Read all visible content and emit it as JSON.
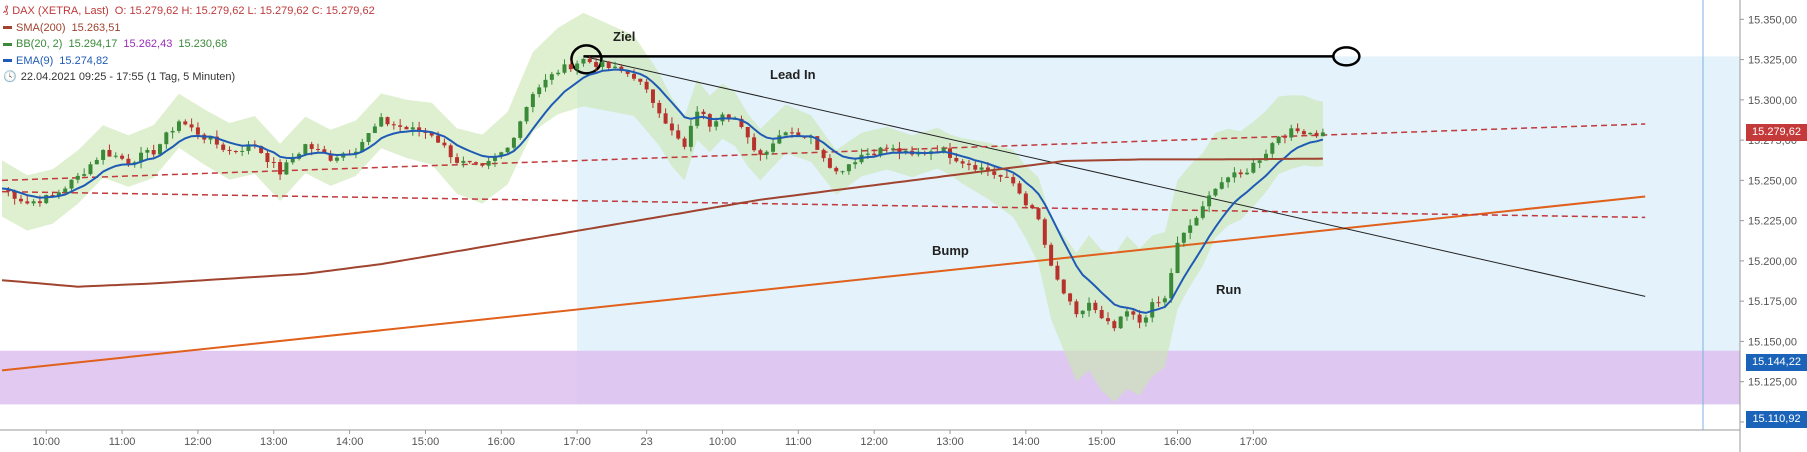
{
  "legend": {
    "instrument": "DAX (XETRA, Last)",
    "ohlc": "O: 15.279,62  H: 15.279,62  L: 15.279,62  C: 15.279,62",
    "sma_label": "SMA(200)",
    "sma_value": "15.263,51",
    "bb_label": "BB(20, 2)",
    "bb_upper": "15.294,17",
    "bb_mid": "15.262,43",
    "bb_lower": "15.230,68",
    "ema_label": "EMA(9)",
    "ema_value": "15.274,82",
    "range": "22.04.2021 09:25 - 17:55  (1 Tag, 5 Minuten)"
  },
  "annotations": {
    "ziel": "Ziel",
    "lead_in": "Lead In",
    "bump": "Bump",
    "run": "Run"
  },
  "price_labels": {
    "last": "15.279,62",
    "zone_top": "15.144,22",
    "zone_bottom": "15.110,92"
  },
  "colors": {
    "bull": "#3a8a3a",
    "bear": "#b8322d",
    "ema": "#1f5bb5",
    "sma": "#a0432f",
    "bb_fill": "#c9e6b0",
    "support": "#e0601c",
    "dashed": "#c0393b",
    "pattern_zone": "#e3f2fb",
    "purple_zone": "#ddbfee",
    "last_label": "#c43a3a",
    "zone_label": "#1a63b8"
  },
  "chart_data": {
    "type": "candlestick",
    "title": "DAX (XETRA, Last)",
    "y_ticks": [
      "15.100,00",
      "15.125,00",
      "15.150,00",
      "15.175,00",
      "15.200,00",
      "15.225,00",
      "15.250,00",
      "15.275,00",
      "15.300,00",
      "15.325,00",
      "15.350,00"
    ],
    "y_tick_values": [
      15100,
      15125,
      15150,
      15175,
      15200,
      15225,
      15250,
      15275,
      15300,
      15325,
      15350
    ],
    "ylim": [
      15095,
      15362
    ],
    "x_ticks": [
      "10:00",
      "11:00",
      "12:00",
      "13:00",
      "14:00",
      "15:00",
      "16:00",
      "17:00",
      "23",
      "10:00",
      "11:00",
      "12:00",
      "13:00",
      "14:00",
      "15:00",
      "16:00",
      "17:00"
    ],
    "x_tick_index": [
      7,
      19,
      31,
      43,
      55,
      67,
      79,
      91,
      102,
      114,
      126,
      138,
      150,
      162,
      174,
      186,
      198
    ],
    "n_bars": 210,
    "pattern_zone_from_index": 91,
    "close_keypoints": [
      [
        0,
        15245
      ],
      [
        4,
        15236
      ],
      [
        8,
        15240
      ],
      [
        12,
        15252
      ],
      [
        16,
        15268
      ],
      [
        20,
        15262
      ],
      [
        24,
        15268
      ],
      [
        28,
        15287
      ],
      [
        32,
        15277
      ],
      [
        36,
        15268
      ],
      [
        40,
        15272
      ],
      [
        44,
        15255
      ],
      [
        48,
        15272
      ],
      [
        52,
        15264
      ],
      [
        56,
        15270
      ],
      [
        60,
        15287
      ],
      [
        64,
        15282
      ],
      [
        68,
        15279
      ],
      [
        72,
        15262
      ],
      [
        76,
        15257
      ],
      [
        80,
        15270
      ],
      [
        84,
        15305
      ],
      [
        88,
        15318
      ],
      [
        92,
        15325
      ],
      [
        96,
        15320
      ],
      [
        100,
        15315
      ],
      [
        104,
        15294
      ],
      [
        106,
        15280
      ],
      [
        108,
        15270
      ],
      [
        110,
        15294
      ],
      [
        112,
        15285
      ],
      [
        114,
        15293
      ],
      [
        116,
        15288
      ],
      [
        118,
        15275
      ],
      [
        120,
        15266
      ],
      [
        124,
        15282
      ],
      [
        128,
        15276
      ],
      [
        132,
        15255
      ],
      [
        136,
        15266
      ],
      [
        140,
        15270
      ],
      [
        144,
        15265
      ],
      [
        148,
        15270
      ],
      [
        152,
        15262
      ],
      [
        156,
        15256
      ],
      [
        160,
        15248
      ],
      [
        164,
        15225
      ],
      [
        166,
        15195
      ],
      [
        168,
        15180
      ],
      [
        170,
        15165
      ],
      [
        172,
        15174
      ],
      [
        174,
        15163
      ],
      [
        176,
        15158
      ],
      [
        178,
        15168
      ],
      [
        180,
        15162
      ],
      [
        182,
        15172
      ],
      [
        184,
        15176
      ],
      [
        186,
        15210
      ],
      [
        188,
        15222
      ],
      [
        190,
        15232
      ],
      [
        192,
        15247
      ],
      [
        194,
        15252
      ],
      [
        196,
        15253
      ],
      [
        198,
        15260
      ],
      [
        200,
        15268
      ],
      [
        202,
        15278
      ],
      [
        204,
        15280
      ],
      [
        206,
        15281
      ],
      [
        208,
        15279
      ]
    ],
    "ema9_last": 15274.82,
    "sma200_keypoints": [
      [
        0,
        15188
      ],
      [
        12,
        15184
      ],
      [
        24,
        15186
      ],
      [
        36,
        15189
      ],
      [
        48,
        15192
      ],
      [
        60,
        15198
      ],
      [
        72,
        15206
      ],
      [
        84,
        15214
      ],
      [
        96,
        15222
      ],
      [
        108,
        15230
      ],
      [
        120,
        15238
      ],
      [
        132,
        15244
      ],
      [
        144,
        15250
      ],
      [
        156,
        15256
      ],
      [
        168,
        15262
      ],
      [
        180,
        15263
      ],
      [
        192,
        15263
      ],
      [
        209,
        15263.5
      ]
    ],
    "bb_width_keypoints": [
      [
        0,
        35
      ],
      [
        20,
        32
      ],
      [
        40,
        36
      ],
      [
        60,
        34
      ],
      [
        80,
        45
      ],
      [
        92,
        58
      ],
      [
        100,
        50
      ],
      [
        112,
        35
      ],
      [
        130,
        28
      ],
      [
        150,
        25
      ],
      [
        162,
        45
      ],
      [
        170,
        80
      ],
      [
        178,
        95
      ],
      [
        186,
        80
      ],
      [
        196,
        55
      ],
      [
        209,
        40
      ]
    ],
    "support_line": [
      [
        0,
        15132
      ],
      [
        209,
        15208
      ]
    ],
    "support_line_end": [
      260,
      15240
    ],
    "resistance_line": [
      [
        92,
        15327
      ],
      [
        260,
        15178
      ]
    ],
    "dashed_line_upper": [
      [
        0,
        15250
      ],
      [
        260,
        15285
      ]
    ],
    "dashed_line_lower": [
      [
        0,
        15243
      ],
      [
        260,
        15227
      ]
    ],
    "target_line": {
      "from": 92,
      "to": 198,
      "y": 15327
    },
    "purple_zone": [
      15110.92,
      15144.22
    ],
    "last_price": 15279.62
  }
}
